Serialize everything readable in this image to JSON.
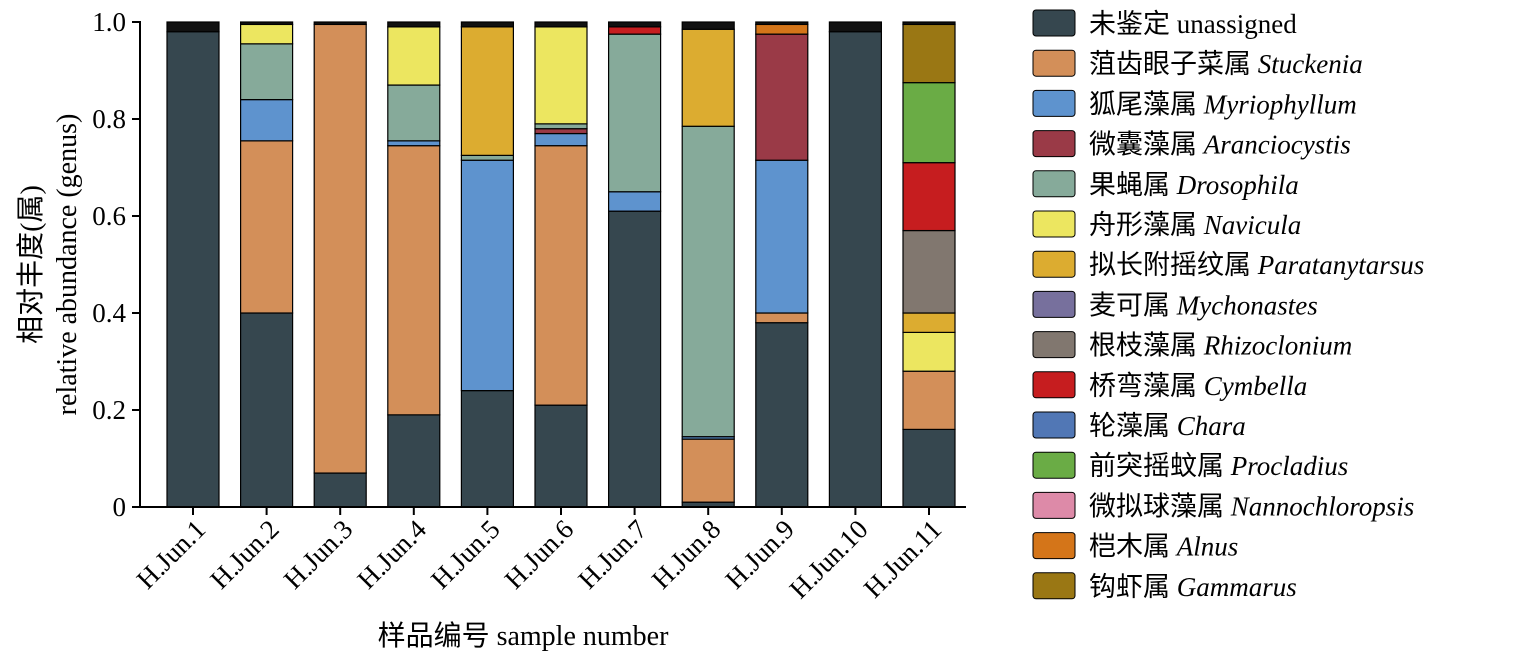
{
  "chart_data": {
    "type": "bar",
    "stacked": true,
    "categories": [
      "H.Jun.1",
      "H.Jun.2",
      "H.Jun.3",
      "H.Jun.4",
      "H.Jun.5",
      "H.Jun.6",
      "H.Jun.7",
      "H.Jun.8",
      "H.Jun.9",
      "H.Jun.10",
      "H.Jun.11"
    ],
    "ylim": [
      0,
      1.0
    ],
    "yticks": [
      "0",
      "0.2",
      "0.4",
      "0.6",
      "0.8",
      "1.0"
    ],
    "ylabel_line1": "相对丰度(属)",
    "ylabel_line2": "relative abundance (genus)",
    "xlabel": "样品编号 sample number",
    "legend_position": "right",
    "other_color": "#111111",
    "series": [
      {
        "name_cn": "未鉴定",
        "name_latin": "unassigned",
        "italic": false,
        "color": "#36474f",
        "values": [
          0.98,
          0.4,
          0.07,
          0.19,
          0.24,
          0.21,
          0.61,
          0.01,
          0.38,
          0.98,
          0.16
        ]
      },
      {
        "name_cn": "菹齿眼子菜属",
        "name_latin": "Stuckenia",
        "italic": true,
        "color": "#d38f59",
        "values": [
          0,
          0.355,
          0.925,
          0.555,
          0,
          0.535,
          0,
          0.13,
          0.02,
          0,
          0.12
        ]
      },
      {
        "name_cn": "狐尾藻属",
        "name_latin": "Myriophyllum",
        "italic": true,
        "color": "#5e93ce",
        "values": [
          0,
          0.085,
          0,
          0.01,
          0.475,
          0.025,
          0.04,
          0.005,
          0.315,
          0,
          0
        ]
      },
      {
        "name_cn": "微囊藻属",
        "name_latin": "Aranciocystis",
        "italic": true,
        "color": "#9a3a47",
        "values": [
          0,
          0,
          0,
          0,
          0,
          0.01,
          0,
          0,
          0.26,
          0,
          0
        ]
      },
      {
        "name_cn": "果蝇属",
        "name_latin": "Drosophila",
        "italic": true,
        "color": "#86aa9a",
        "values": [
          0,
          0.115,
          0,
          0.115,
          0.01,
          0.01,
          0.325,
          0.64,
          0,
          0,
          0
        ]
      },
      {
        "name_cn": "舟形藻属",
        "name_latin": "Navicula",
        "italic": true,
        "color": "#ece660",
        "values": [
          0,
          0.04,
          0,
          0.12,
          0,
          0.2,
          0,
          0,
          0,
          0,
          0.08
        ]
      },
      {
        "name_cn": "拟长附摇纹属",
        "name_latin": "Paratanytarsus",
        "italic": true,
        "color": "#dcac30",
        "values": [
          0,
          0,
          0,
          0,
          0.265,
          0,
          0,
          0.2,
          0,
          0,
          0.04
        ]
      },
      {
        "name_cn": "麦可属",
        "name_latin": "Mychonastes",
        "italic": true,
        "color": "#77709d",
        "values": [
          0,
          0,
          0,
          0,
          0,
          0,
          0,
          0,
          0,
          0,
          0
        ]
      },
      {
        "name_cn": "根枝藻属",
        "name_latin": "Rhizoclonium",
        "italic": true,
        "color": "#81776f",
        "values": [
          0,
          0,
          0,
          0,
          0,
          0,
          0,
          0,
          0,
          0,
          0.17
        ]
      },
      {
        "name_cn": "桥弯藻属",
        "name_latin": "Cymbella",
        "italic": true,
        "color": "#c61d1f",
        "values": [
          0,
          0,
          0,
          0,
          0,
          0,
          0.015,
          0,
          0,
          0,
          0.14
        ]
      },
      {
        "name_cn": "轮藻属",
        "name_latin": "Chara",
        "italic": true,
        "color": "#5177b5",
        "values": [
          0,
          0,
          0,
          0,
          0,
          0,
          0,
          0,
          0,
          0,
          0
        ]
      },
      {
        "name_cn": "前突摇蚊属",
        "name_latin": "Procladius",
        "italic": true,
        "color": "#6aac45",
        "values": [
          0,
          0,
          0,
          0,
          0,
          0,
          0,
          0,
          0,
          0,
          0.165
        ]
      },
      {
        "name_cn": "微拟球藻属",
        "name_latin": "Nannochloropsis",
        "italic": true,
        "color": "#dd8aa8",
        "values": [
          0,
          0,
          0,
          0,
          0,
          0,
          0,
          0,
          0,
          0,
          0
        ]
      },
      {
        "name_cn": "桤木属",
        "name_latin": "Alnus",
        "italic": true,
        "color": "#d47519",
        "values": [
          0,
          0,
          0,
          0,
          0,
          0,
          0,
          0,
          0.02,
          0,
          0
        ]
      },
      {
        "name_cn": "钩虾属",
        "name_latin": "Gammarus",
        "italic": true,
        "color": "#9a7714",
        "values": [
          0,
          0,
          0,
          0,
          0,
          0,
          0,
          0,
          0,
          0,
          0.12
        ]
      }
    ]
  }
}
